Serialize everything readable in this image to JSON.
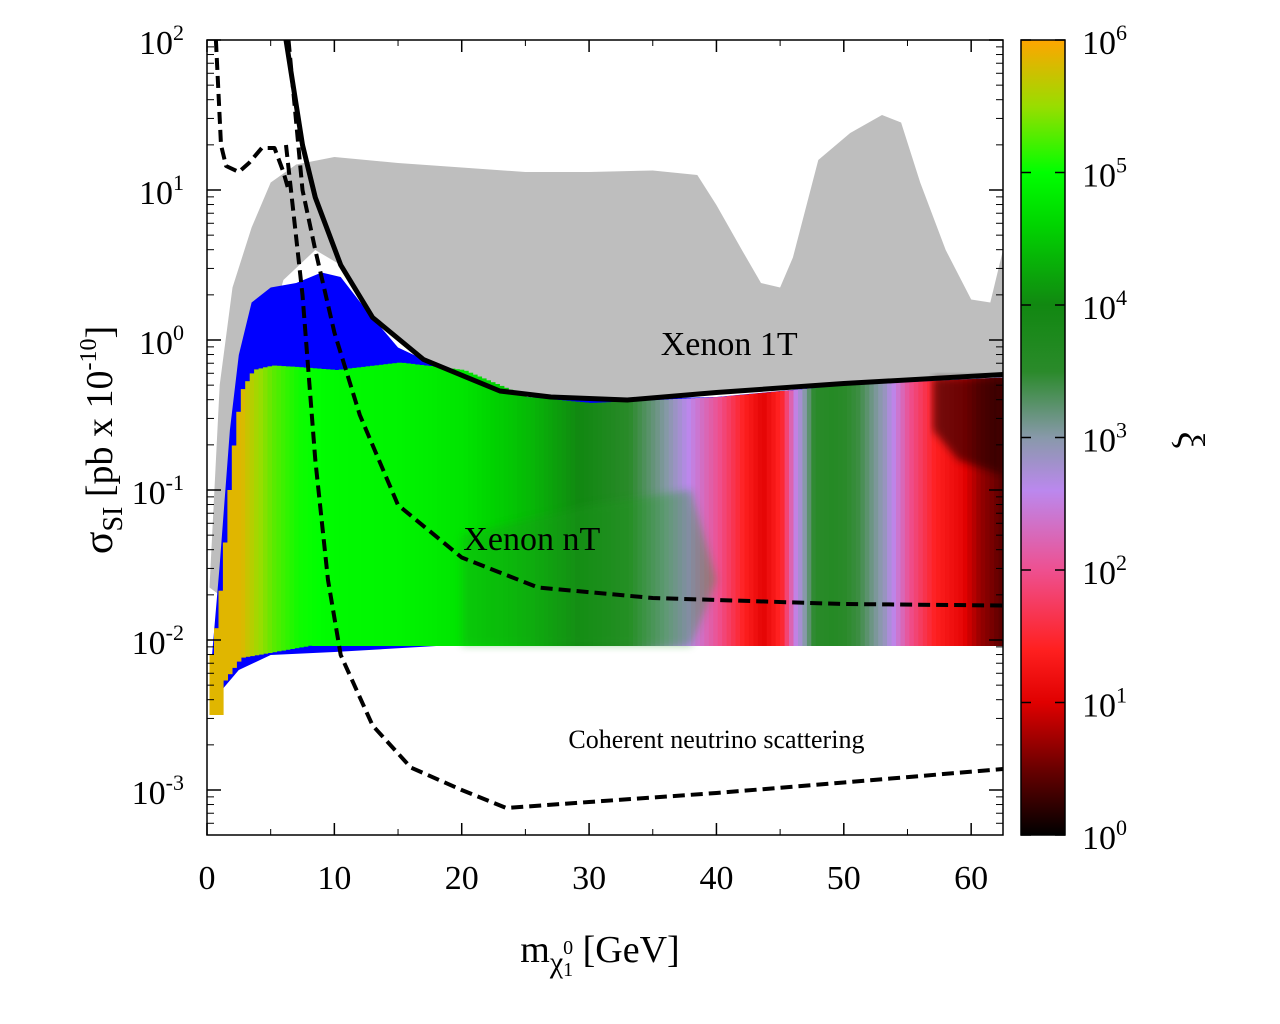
{
  "chart_data": {
    "type": "scatter",
    "xlabel": {
      "base": "m",
      "sub": "χ",
      "subsub": "1",
      "supsub": "0",
      "unit": " [GeV]"
    },
    "ylabel": {
      "base": "σ",
      "sub": "SI",
      "unit": " [pb x 10",
      "exp": "-10",
      "close": "]"
    },
    "xlim": [
      0,
      62.5
    ],
    "ylim_log10": [
      -3.3,
      2
    ],
    "x_ticks": [
      0,
      10,
      20,
      30,
      40,
      50,
      60
    ],
    "y_ticks": [
      {
        "base": "10",
        "exp": "-3",
        "value": -3
      },
      {
        "base": "10",
        "exp": "-2",
        "value": -2
      },
      {
        "base": "10",
        "exp": "-1",
        "value": -1
      },
      {
        "base": "10",
        "exp": "0",
        "value": 0
      },
      {
        "base": "10",
        "exp": "1",
        "value": 1
      },
      {
        "base": "10",
        "exp": "2",
        "value": 2
      }
    ],
    "colorbar": {
      "label": "ξ",
      "range_log10": [
        0,
        6
      ],
      "ticks": [
        {
          "base": "10",
          "exp": "0",
          "value": 0
        },
        {
          "base": "10",
          "exp": "1",
          "value": 1
        },
        {
          "base": "10",
          "exp": "2",
          "value": 2
        },
        {
          "base": "10",
          "exp": "3",
          "value": 3
        },
        {
          "base": "10",
          "exp": "4",
          "value": 4
        },
        {
          "base": "10",
          "exp": "5",
          "value": 5
        },
        {
          "base": "10",
          "exp": "6",
          "value": 6
        }
      ],
      "stops": [
        {
          "v": 0,
          "color": "#000000"
        },
        {
          "v": 0.5,
          "color": "#6a0000"
        },
        {
          "v": 1.0,
          "color": "#e00000"
        },
        {
          "v": 1.4,
          "color": "#ff2020"
        },
        {
          "v": 2.0,
          "color": "#ee5090"
        },
        {
          "v": 2.6,
          "color": "#bb88ee"
        },
        {
          "v": 3.0,
          "color": "#8899aa"
        },
        {
          "v": 3.5,
          "color": "#2a8a2a"
        },
        {
          "v": 4.0,
          "color": "#118811"
        },
        {
          "v": 4.6,
          "color": "#00d400"
        },
        {
          "v": 5.0,
          "color": "#00ff00"
        },
        {
          "v": 5.5,
          "color": "#99dd00"
        },
        {
          "v": 6.0,
          "color": "#ffa500"
        }
      ]
    },
    "series": [
      {
        "name": "Xenon 1T",
        "style": "solid",
        "x": [
          6.2,
          7.5,
          8.5,
          10.5,
          13,
          17,
          23,
          27,
          33,
          40,
          50,
          62.5
        ],
        "log_y": [
          2.0,
          1.3,
          0.95,
          0.5,
          0.15,
          -0.13,
          -0.34,
          -0.38,
          -0.4,
          -0.35,
          -0.29,
          -0.23
        ]
      },
      {
        "name": "Xenon nT",
        "style": "dashed",
        "x": [
          6.4,
          7.5,
          8.5,
          10,
          12,
          15,
          20,
          26,
          35,
          50,
          62.5
        ],
        "log_y": [
          2.0,
          1.0,
          0.6,
          0.05,
          -0.5,
          -1.1,
          -1.45,
          -1.65,
          -1.72,
          -1.76,
          -1.77
        ]
      },
      {
        "name": "Coherent neutrino scattering",
        "style": "dashed",
        "x": [
          6.2,
          7.5,
          8.5,
          9.5,
          10.5,
          13,
          16,
          20,
          23.5,
          30,
          40,
          50,
          62.5
        ],
        "log_y": [
          1.3,
          0.3,
          -0.8,
          -1.6,
          -2.1,
          -2.57,
          -2.85,
          -3.0,
          -3.12,
          -3.08,
          -3.02,
          -2.95,
          -2.86
        ]
      },
      {
        "name": "low-mass dashed bound",
        "style": "dashed",
        "x": [
          0.7,
          1.1,
          1.5,
          2.5,
          3.3,
          4.3,
          5.3,
          6.0,
          6.4
        ],
        "log_y": [
          2.0,
          1.3,
          1.16,
          1.12,
          1.18,
          1.28,
          1.28,
          1.12,
          1.0
        ]
      }
    ],
    "regions": [
      {
        "name": "excluded points",
        "color": "#bebebe"
      },
      {
        "name": "blue points",
        "color": "#0000ff"
      },
      {
        "name": "allowed points coloured by ξ",
        "color_by": "xi"
      }
    ],
    "annotations": [
      {
        "text": "Xenon 1T",
        "x": 41,
        "log_y": -0.1
      },
      {
        "text": "Xenon nT",
        "x": 25.5,
        "log_y": -1.4
      },
      {
        "text": "Coherent neutrino scattering",
        "x": 40,
        "log_y": -2.72
      }
    ]
  }
}
